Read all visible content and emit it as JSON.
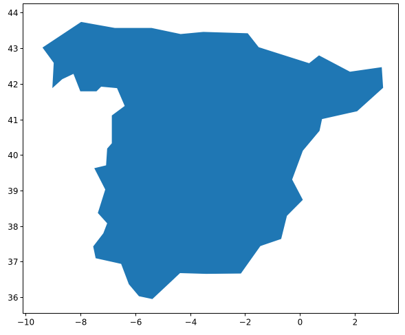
{
  "chart_data": {
    "type": "map",
    "region": "Spain",
    "geometry_type": "polygon",
    "fill_color": "#1f77b4",
    "xlim": [
      -10.1,
      3.6
    ],
    "ylim": [
      35.55,
      44.25
    ],
    "x_ticks": [
      -10,
      -8,
      -6,
      -4,
      -2,
      0,
      2
    ],
    "y_ticks": [
      36,
      37,
      38,
      39,
      40,
      41,
      42,
      43,
      44
    ],
    "x_tick_labels": [
      "−10",
      "−8",
      "−6",
      "−4",
      "−2",
      "0",
      "2"
    ],
    "y_tick_labels": [
      "36",
      "37",
      "38",
      "39",
      "40",
      "41",
      "42",
      "43",
      "44"
    ],
    "coordinates": [
      [
        -9.39,
        43.02
      ],
      [
        -7.98,
        43.74
      ],
      [
        -6.75,
        43.57
      ],
      [
        -5.41,
        43.57
      ],
      [
        -4.35,
        43.4
      ],
      [
        -3.52,
        43.46
      ],
      [
        -1.9,
        43.42
      ],
      [
        -1.5,
        43.03
      ],
      [
        0.34,
        42.58
      ],
      [
        0.7,
        42.8
      ],
      [
        1.83,
        42.34
      ],
      [
        2.99,
        42.47
      ],
      [
        3.04,
        41.89
      ],
      [
        2.09,
        41.23
      ],
      [
        0.81,
        41.01
      ],
      [
        0.72,
        40.68
      ],
      [
        0.11,
        40.12
      ],
      [
        -0.28,
        39.31
      ],
      [
        0.11,
        38.74
      ],
      [
        -0.47,
        38.29
      ],
      [
        -0.68,
        37.64
      ],
      [
        -1.44,
        37.44
      ],
      [
        -2.15,
        36.67
      ],
      [
        -3.42,
        36.66
      ],
      [
        -4.37,
        36.68
      ],
      [
        -5.38,
        35.95
      ],
      [
        -5.87,
        36.03
      ],
      [
        -6.24,
        36.37
      ],
      [
        -6.52,
        36.94
      ],
      [
        -7.45,
        37.1
      ],
      [
        -7.54,
        37.43
      ],
      [
        -7.17,
        37.8
      ],
      [
        -7.03,
        38.08
      ],
      [
        -7.37,
        38.37
      ],
      [
        -7.1,
        39.03
      ],
      [
        -7.5,
        39.63
      ],
      [
        -7.07,
        39.71
      ],
      [
        -7.03,
        40.18
      ],
      [
        -6.86,
        40.33
      ],
      [
        -6.86,
        41.11
      ],
      [
        -6.39,
        41.38
      ],
      [
        -6.67,
        41.88
      ],
      [
        -7.25,
        41.92
      ],
      [
        -7.42,
        41.79
      ],
      [
        -8.01,
        41.79
      ],
      [
        -8.26,
        42.28
      ],
      [
        -8.67,
        42.13
      ],
      [
        -9.03,
        41.88
      ],
      [
        -8.98,
        42.59
      ],
      [
        -9.39,
        43.02
      ]
    ]
  }
}
